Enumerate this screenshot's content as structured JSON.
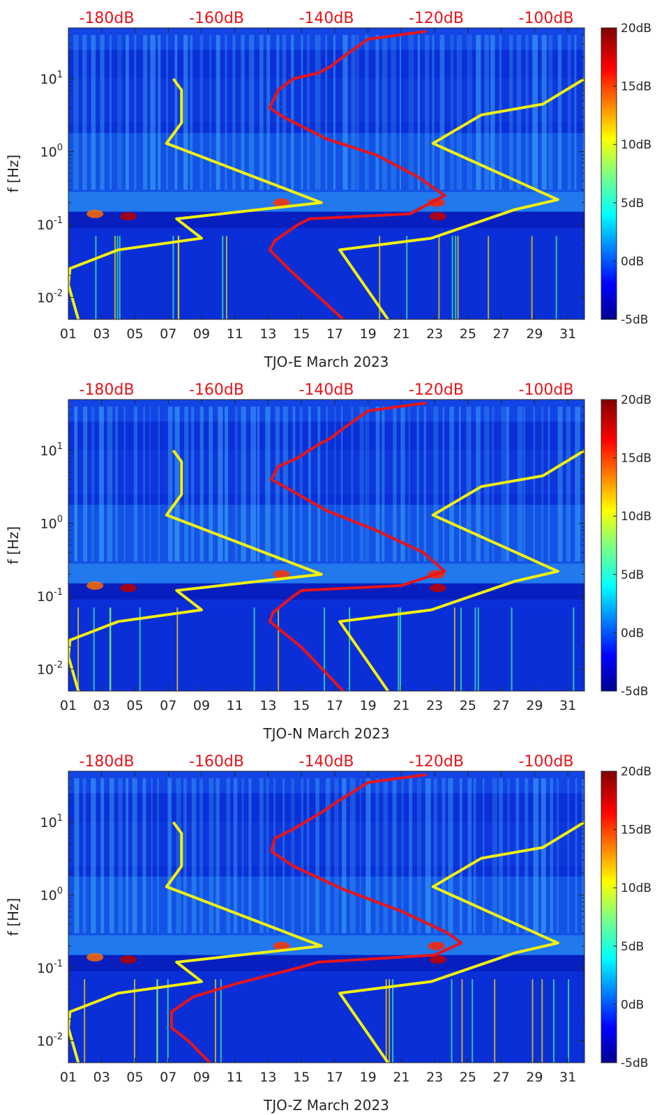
{
  "chart_data": [
    {
      "type": "heatmap",
      "title": "",
      "xlabel": "TJO-E March 2023",
      "ylabel": "f [Hz]",
      "x_ticks": [
        "01",
        "03",
        "05",
        "07",
        "09",
        "11",
        "13",
        "15",
        "17",
        "19",
        "21",
        "23",
        "25",
        "27",
        "29",
        "31"
      ],
      "xlim": [
        1,
        32
      ],
      "y_ticks": [
        {
          "exp": "-2",
          "value": 0.01
        },
        {
          "exp": "-1",
          "value": 0.1
        },
        {
          "exp": "0",
          "value": 1
        },
        {
          "exp": "1",
          "value": 10
        }
      ],
      "ylim": [
        0.005,
        50
      ],
      "colorbar_ticks": [
        "20dB",
        "15dB",
        "10dB",
        "5dB",
        "0dB",
        "-5dB"
      ],
      "clim": [
        -5,
        20
      ],
      "top_axis_labels": [
        "-180dB",
        "-160dB",
        "-140dB",
        "-120dB",
        "-100dB"
      ],
      "noise_model_low": {
        "color": "#f2f20d",
        "points": [
          [
            7.3,
            10
          ],
          [
            7.8,
            7
          ],
          [
            7.8,
            2.5
          ],
          [
            6.9,
            1.3
          ],
          [
            16.2,
            0.2
          ],
          [
            7.5,
            0.12
          ],
          [
            9.0,
            0.065
          ],
          [
            4.0,
            0.045
          ],
          [
            1.1,
            0.025
          ],
          [
            1.0,
            0.015
          ],
          [
            1.6,
            0.005
          ]
        ]
      },
      "noise_model_high": {
        "color": "#f2f20d",
        "points": [
          [
            32,
            10
          ],
          [
            29.5,
            4.5
          ],
          [
            25.8,
            3.2
          ],
          [
            22.9,
            1.3
          ],
          [
            30.4,
            0.22
          ],
          [
            27.8,
            0.16
          ],
          [
            22.8,
            0.065
          ],
          [
            17.3,
            0.045
          ],
          [
            20.2,
            0.005
          ]
        ]
      },
      "station_psd": {
        "color": "#e8141a",
        "points": [
          [
            22.5,
            45
          ],
          [
            19,
            35
          ],
          [
            17.5,
            20
          ],
          [
            16.8,
            15
          ],
          [
            16,
            12
          ],
          [
            14.5,
            10
          ],
          [
            13.6,
            7
          ],
          [
            13.1,
            4
          ],
          [
            13.9,
            3
          ],
          [
            16.5,
            1.5
          ],
          [
            19.5,
            0.9
          ],
          [
            22,
            0.45
          ],
          [
            23.6,
            0.25
          ],
          [
            21.5,
            0.14
          ],
          [
            15.5,
            0.12
          ],
          [
            14.8,
            0.1
          ],
          [
            13.4,
            0.06
          ],
          [
            13.1,
            0.045
          ],
          [
            14.2,
            0.025
          ],
          [
            17.5,
            0.005
          ]
        ]
      }
    },
    {
      "type": "heatmap",
      "title": "",
      "xlabel": "TJO-N March 2023",
      "ylabel": "f [Hz]",
      "x_ticks": [
        "01",
        "03",
        "05",
        "07",
        "09",
        "11",
        "13",
        "15",
        "17",
        "19",
        "21",
        "23",
        "25",
        "27",
        "29",
        "31"
      ],
      "xlim": [
        1,
        32
      ],
      "y_ticks": [
        {
          "exp": "-2",
          "value": 0.01
        },
        {
          "exp": "-1",
          "value": 0.1
        },
        {
          "exp": "0",
          "value": 1
        },
        {
          "exp": "1",
          "value": 10
        }
      ],
      "ylim": [
        0.005,
        50
      ],
      "colorbar_ticks": [
        "20dB",
        "15dB",
        "10dB",
        "5dB",
        "0dB",
        "-5dB"
      ],
      "clim": [
        -5,
        20
      ],
      "top_axis_labels": [
        "-180dB",
        "-160dB",
        "-140dB",
        "-120dB",
        "-100dB"
      ],
      "noise_model_low": {
        "color": "#f2f20d",
        "points": [
          [
            7.3,
            10
          ],
          [
            7.8,
            7
          ],
          [
            7.8,
            2.5
          ],
          [
            6.9,
            1.3
          ],
          [
            16.2,
            0.2
          ],
          [
            7.5,
            0.12
          ],
          [
            9.0,
            0.065
          ],
          [
            4.0,
            0.045
          ],
          [
            1.1,
            0.025
          ],
          [
            1.0,
            0.015
          ],
          [
            1.6,
            0.005
          ]
        ]
      },
      "noise_model_high": {
        "color": "#f2f20d",
        "points": [
          [
            32,
            10
          ],
          [
            29.5,
            4.5
          ],
          [
            25.8,
            3.2
          ],
          [
            22.9,
            1.3
          ],
          [
            30.4,
            0.22
          ],
          [
            27.8,
            0.16
          ],
          [
            22.8,
            0.065
          ],
          [
            17.3,
            0.045
          ],
          [
            20.2,
            0.005
          ]
        ]
      },
      "station_psd": {
        "color": "#e8141a",
        "points": [
          [
            22.5,
            45
          ],
          [
            19,
            35
          ],
          [
            17.5,
            20
          ],
          [
            16.8,
            15
          ],
          [
            16,
            12
          ],
          [
            14.8,
            8
          ],
          [
            13.6,
            6
          ],
          [
            13.2,
            4
          ],
          [
            14.2,
            3
          ],
          [
            16.5,
            1.5
          ],
          [
            19.5,
            0.8
          ],
          [
            22.3,
            0.4
          ],
          [
            23.6,
            0.22
          ],
          [
            21,
            0.14
          ],
          [
            15,
            0.12
          ],
          [
            14.5,
            0.1
          ],
          [
            13.3,
            0.06
          ],
          [
            13.1,
            0.045
          ],
          [
            15,
            0.02
          ],
          [
            17.5,
            0.005
          ]
        ]
      }
    },
    {
      "type": "heatmap",
      "title": "",
      "xlabel": "TJO-Z March 2023",
      "ylabel": "f [Hz]",
      "x_ticks": [
        "01",
        "03",
        "05",
        "07",
        "09",
        "11",
        "13",
        "15",
        "17",
        "19",
        "21",
        "23",
        "25",
        "27",
        "29",
        "31"
      ],
      "xlim": [
        1,
        32
      ],
      "y_ticks": [
        {
          "exp": "-2",
          "value": 0.01
        },
        {
          "exp": "-1",
          "value": 0.1
        },
        {
          "exp": "0",
          "value": 1
        },
        {
          "exp": "1",
          "value": 10
        }
      ],
      "ylim": [
        0.005,
        50
      ],
      "colorbar_ticks": [
        "20dB",
        "15dB",
        "10dB",
        "5dB",
        "0dB",
        "-5dB"
      ],
      "clim": [
        -5,
        20
      ],
      "top_axis_labels": [
        "-180dB",
        "-160dB",
        "-140dB",
        "-120dB",
        "-100dB"
      ],
      "noise_model_low": {
        "color": "#f2f20d",
        "points": [
          [
            7.3,
            10
          ],
          [
            7.8,
            7
          ],
          [
            7.8,
            2.5
          ],
          [
            6.9,
            1.3
          ],
          [
            16.2,
            0.2
          ],
          [
            7.5,
            0.12
          ],
          [
            9.0,
            0.065
          ],
          [
            4.0,
            0.045
          ],
          [
            1.1,
            0.025
          ],
          [
            1.0,
            0.015
          ],
          [
            1.6,
            0.005
          ]
        ]
      },
      "noise_model_high": {
        "color": "#f2f20d",
        "points": [
          [
            32,
            10
          ],
          [
            29.5,
            4.5
          ],
          [
            25.8,
            3.2
          ],
          [
            22.9,
            1.3
          ],
          [
            30.4,
            0.22
          ],
          [
            27.8,
            0.16
          ],
          [
            22.8,
            0.065
          ],
          [
            17.3,
            0.045
          ],
          [
            20.2,
            0.005
          ]
        ]
      },
      "station_psd": {
        "color": "#e8141a",
        "points": [
          [
            22.5,
            45
          ],
          [
            19,
            35
          ],
          [
            17.3,
            20
          ],
          [
            16.5,
            15
          ],
          [
            15.8,
            12
          ],
          [
            14.5,
            8
          ],
          [
            13.4,
            6
          ],
          [
            13.2,
            4
          ],
          [
            14.5,
            2.5
          ],
          [
            17.5,
            1.2
          ],
          [
            21,
            0.6
          ],
          [
            23.8,
            0.3
          ],
          [
            24.6,
            0.22
          ],
          [
            23,
            0.15
          ],
          [
            16,
            0.12
          ],
          [
            14.8,
            0.1
          ],
          [
            11,
            0.06
          ],
          [
            8.5,
            0.04
          ],
          [
            7.2,
            0.025
          ],
          [
            7.2,
            0.015
          ],
          [
            8.2,
            0.01
          ],
          [
            9.5,
            0.005
          ]
        ]
      }
    }
  ]
}
